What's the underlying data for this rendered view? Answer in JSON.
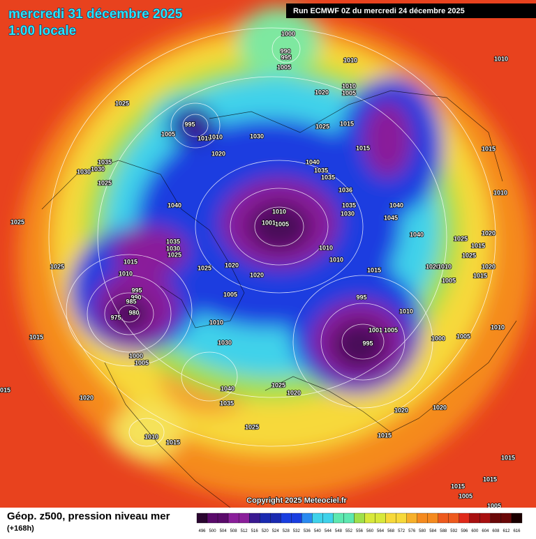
{
  "header": {
    "title": "mercredi 31 décembre 2025",
    "subtitle": "1:00 locale",
    "run": "Run ECMWF 0Z du mercredi 24 décembre 2025"
  },
  "footer": {
    "field": "Géop. z500, pression niveau mer",
    "lead": "(+168h)",
    "copyright": "Copyright 2025 Meteociel.fr"
  },
  "legend": {
    "ticks": [
      496,
      500,
      504,
      508,
      512,
      516,
      520,
      524,
      528,
      532,
      536,
      540,
      544,
      548,
      552,
      556,
      560,
      564,
      568,
      572,
      576,
      580,
      584,
      588,
      592,
      596,
      600,
      604,
      608,
      612,
      616
    ]
  },
  "isobar_labels": [
    1000,
    990,
    995,
    1005,
    1010,
    1010,
    1020,
    1010,
    1005,
    1025,
    995,
    1005,
    1010,
    1010,
    1015,
    1025,
    1030,
    1020,
    1015,
    1015,
    1040,
    1035,
    1035,
    1035,
    1030,
    1030,
    1025,
    1036,
    1010,
    1040,
    1035,
    1030,
    1040,
    1045,
    1025,
    1010,
    1001,
    1005,
    1040,
    1020,
    1035,
    1030,
    1025,
    1025,
    1015,
    1025,
    1010,
    1010,
    1015,
    1025,
    1020,
    1015,
    1020,
    1010,
    1020,
    1010,
    1020,
    1015,
    1025,
    1005,
    995,
    990,
    985,
    980,
    975,
    1005,
    995,
    1010,
    1010,
    1001,
    1005,
    1010,
    995,
    1000,
    1005,
    1015,
    1030,
    1000,
    1005,
    1040,
    1025,
    1020,
    1035,
    1020,
    1020,
    1020,
    1025,
    1010,
    1015,
    1015,
    1015,
    1015,
    1015,
    1015,
    1005,
    1005
  ]
}
